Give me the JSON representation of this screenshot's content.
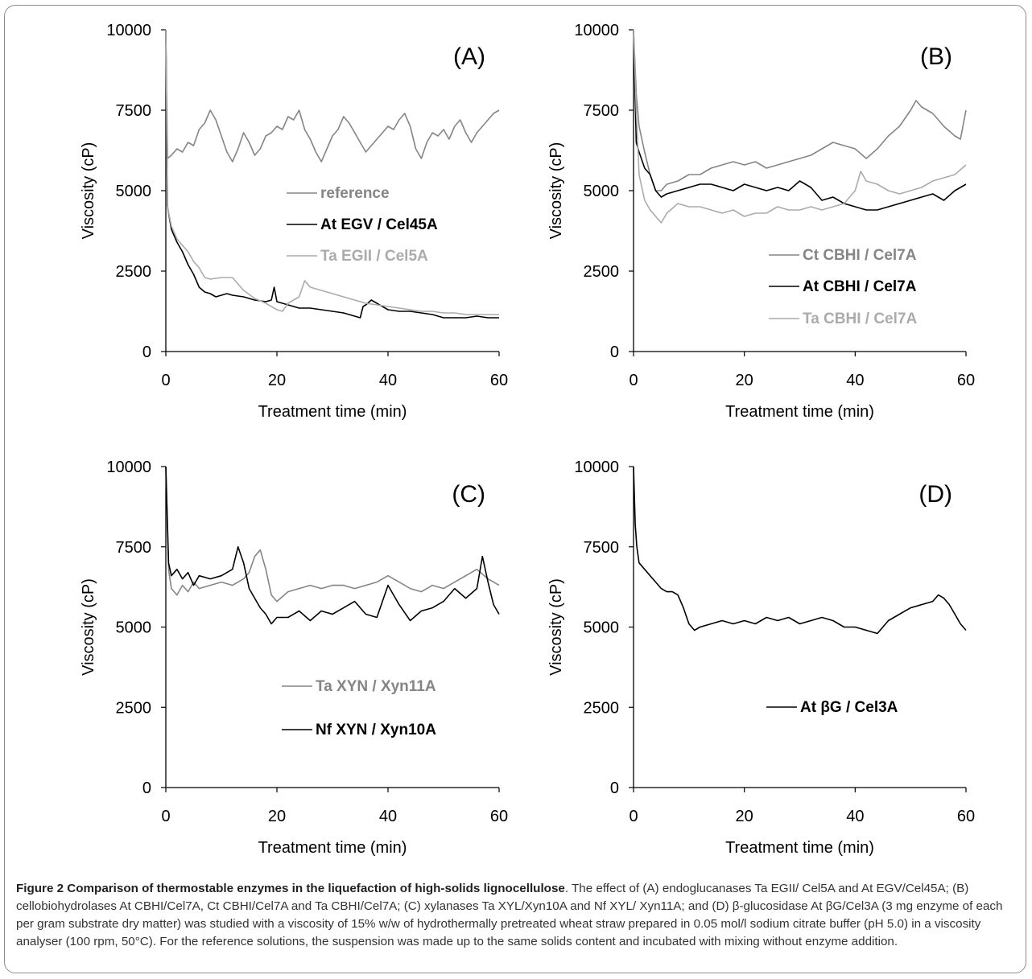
{
  "caption": {
    "title": "Figure 2 Comparison of thermostable enzymes in the liquefaction of high-solids lignocellulose",
    "body": ". The effect of (A) endoglucanases Ta EGII/ Cel5A and At EGV/Cel45A; (B) cellobiohydrolases At CBHI/Cel7A, Ct CBHI/Cel7A and Ta CBHI/Cel7A; (C) xylanases Ta XYL/Xyn10A and Nf XYL/ Xyn11A; and (D) β-glucosidase At βG/Cel3A (3 mg enzyme of each per gram substrate dry matter) was studied with a viscosity of 15% w/w of hydrothermally pretreated wheat straw prepared in 0.05 mol/l sodium citrate buffer (pH 5.0) in a viscosity analyser (100 rpm, 50°C). For the reference solutions, the suspension was made up to the same solids content and incubated with mixing without enzyme addition."
  },
  "colors": {
    "dark_gray": "#858585",
    "black": "#000000",
    "light_gray": "#ababab"
  },
  "chart_data": [
    {
      "type": "line",
      "panel_label": "(A)",
      "xlabel": "Treatment time (min)",
      "ylabel": "Viscosity (cP)",
      "xlim": [
        0,
        60
      ],
      "ylim": [
        0,
        10000
      ],
      "x_ticks": [
        "0",
        "20",
        "40",
        "60"
      ],
      "y_ticks": [
        "0",
        "2500",
        "5000",
        "7500",
        "10000"
      ],
      "legend": "center",
      "series": [
        {
          "name": "reference",
          "color": "#858585",
          "x": [
            0,
            0.3,
            1,
            2,
            3,
            4,
            5,
            6,
            7,
            8,
            9,
            10,
            11,
            12,
            13,
            14,
            15,
            16,
            17,
            18,
            19,
            20,
            21,
            22,
            23,
            24,
            25,
            26,
            27,
            28,
            29,
            30,
            31,
            32,
            33,
            34,
            35,
            36,
            37,
            38,
            39,
            40,
            41,
            42,
            43,
            44,
            45,
            46,
            47,
            48,
            49,
            50,
            51,
            52,
            53,
            54,
            55,
            56,
            57,
            58,
            59,
            60
          ],
          "y": [
            10000,
            6000,
            6100,
            6300,
            6200,
            6500,
            6400,
            6900,
            7100,
            7500,
            7200,
            6700,
            6200,
            5900,
            6300,
            6800,
            6500,
            6100,
            6300,
            6700,
            6800,
            7000,
            6900,
            7300,
            7200,
            7500,
            6900,
            6600,
            6200,
            5900,
            6300,
            6700,
            6900,
            7300,
            7100,
            6800,
            6500,
            6200,
            6400,
            6600,
            6800,
            7000,
            6900,
            7200,
            7400,
            7000,
            6300,
            6000,
            6500,
            6800,
            6700,
            6900,
            6600,
            7000,
            7200,
            6800,
            6500,
            6800,
            7000,
            7200,
            7400,
            7500
          ]
        },
        {
          "name": "At EGV / Cel45A",
          "color": "#000000",
          "x": [
            0,
            0.3,
            1,
            2,
            3,
            4,
            5,
            6,
            7,
            8,
            9,
            10,
            11,
            12,
            14,
            16,
            18,
            19,
            19.5,
            20,
            22,
            24,
            26,
            28,
            30,
            32,
            34,
            35,
            35.5,
            36,
            37,
            38,
            40,
            42,
            44,
            46,
            48,
            50,
            52,
            54,
            56,
            58,
            60
          ],
          "y": [
            10000,
            4500,
            3800,
            3400,
            3100,
            2700,
            2400,
            2000,
            1850,
            1800,
            1700,
            1750,
            1800,
            1750,
            1700,
            1600,
            1550,
            1600,
            2000,
            1550,
            1450,
            1350,
            1350,
            1300,
            1250,
            1200,
            1100,
            1050,
            1400,
            1450,
            1600,
            1500,
            1300,
            1250,
            1250,
            1200,
            1150,
            1050,
            1050,
            1050,
            1100,
            1050,
            1050
          ]
        },
        {
          "name": "Ta EGII / Cel5A",
          "color": "#ababab",
          "x": [
            0,
            0.3,
            1,
            2,
            3,
            4,
            5,
            6,
            7,
            8,
            10,
            12,
            14,
            16,
            18,
            20,
            21,
            22,
            24,
            25,
            26,
            28,
            30,
            32,
            34,
            36,
            38,
            40,
            42,
            44,
            46,
            48,
            50,
            52,
            54,
            56,
            58,
            60
          ],
          "y": [
            10000,
            4500,
            3900,
            3500,
            3300,
            3100,
            2800,
            2600,
            2300,
            2250,
            2300,
            2300,
            1900,
            1650,
            1500,
            1300,
            1250,
            1500,
            1700,
            2200,
            2000,
            1900,
            1800,
            1700,
            1600,
            1500,
            1450,
            1400,
            1350,
            1300,
            1250,
            1250,
            1200,
            1200,
            1150,
            1150,
            1150,
            1150
          ]
        }
      ]
    },
    {
      "type": "line",
      "panel_label": "(B)",
      "xlabel": "Treatment time (min)",
      "ylabel": "Viscosity (cP)",
      "xlim": [
        0,
        60
      ],
      "ylim": [
        0,
        10000
      ],
      "x_ticks": [
        "0",
        "20",
        "40",
        "60"
      ],
      "y_ticks": [
        "0",
        "2500",
        "5000",
        "7500",
        "10000"
      ],
      "legend": "bottom-right",
      "series": [
        {
          "name": "Ct CBHI / Cel7A",
          "color": "#858585",
          "x": [
            0,
            0.5,
            1,
            2,
            3,
            4,
            5,
            6,
            8,
            10,
            12,
            14,
            16,
            18,
            20,
            22,
            24,
            26,
            28,
            30,
            32,
            34,
            36,
            38,
            40,
            42,
            44,
            46,
            48,
            50,
            51,
            52,
            54,
            56,
            58,
            59,
            60
          ],
          "y": [
            10000,
            8000,
            7000,
            6200,
            5500,
            5000,
            5000,
            5200,
            5300,
            5500,
            5500,
            5700,
            5800,
            5900,
            5800,
            5900,
            5700,
            5800,
            5900,
            6000,
            6100,
            6300,
            6500,
            6400,
            6300,
            6000,
            6300,
            6700,
            7000,
            7500,
            7800,
            7600,
            7400,
            7000,
            6700,
            6600,
            7500
          ]
        },
        {
          "name": "At CBHI / Cel7A",
          "color": "#000000",
          "x": [
            0,
            0.5,
            1,
            2,
            3,
            4,
            5,
            6,
            8,
            10,
            12,
            14,
            16,
            18,
            20,
            22,
            24,
            26,
            28,
            30,
            32,
            34,
            36,
            38,
            40,
            42,
            44,
            46,
            48,
            50,
            52,
            54,
            56,
            58,
            60
          ],
          "y": [
            10000,
            6500,
            6200,
            5700,
            5500,
            5000,
            4800,
            4900,
            5000,
            5100,
            5200,
            5200,
            5100,
            5000,
            5200,
            5100,
            5000,
            5100,
            5000,
            5300,
            5100,
            4700,
            4800,
            4600,
            4500,
            4400,
            4400,
            4500,
            4600,
            4700,
            4800,
            4900,
            4700,
            5000,
            5200
          ]
        },
        {
          "name": "Ta CBHI / Cel7A",
          "color": "#ababab",
          "x": [
            0,
            0.5,
            1,
            2,
            3,
            4,
            5,
            6,
            8,
            10,
            12,
            14,
            16,
            18,
            20,
            22,
            24,
            26,
            28,
            30,
            32,
            34,
            36,
            38,
            40,
            41,
            42,
            44,
            46,
            48,
            50,
            52,
            54,
            56,
            58,
            60
          ],
          "y": [
            10000,
            7500,
            5500,
            4700,
            4400,
            4200,
            4000,
            4300,
            4600,
            4500,
            4500,
            4400,
            4300,
            4400,
            4200,
            4300,
            4300,
            4500,
            4400,
            4400,
            4500,
            4400,
            4500,
            4600,
            5000,
            5600,
            5300,
            5200,
            5000,
            4900,
            5000,
            5100,
            5300,
            5400,
            5500,
            5800
          ]
        }
      ]
    },
    {
      "type": "line",
      "panel_label": "(C)",
      "xlabel": "Treatment time (min)",
      "ylabel": "Viscosity (cP)",
      "xlim": [
        0,
        60
      ],
      "ylim": [
        0,
        10000
      ],
      "x_ticks": [
        "0",
        "20",
        "40",
        "60"
      ],
      "y_ticks": [
        "0",
        "2500",
        "5000",
        "7500",
        "10000"
      ],
      "legend": "bottom-center",
      "series": [
        {
          "name": "Ta XYN / Xyn11A",
          "color": "#858585",
          "x": [
            0,
            0.5,
            1,
            2,
            3,
            4,
            5,
            6,
            8,
            10,
            12,
            14,
            15,
            16,
            17,
            18,
            19,
            20,
            22,
            24,
            26,
            28,
            30,
            32,
            34,
            36,
            38,
            40,
            42,
            44,
            46,
            48,
            50,
            52,
            54,
            56,
            58,
            60
          ],
          "y": [
            10000,
            6800,
            6200,
            6000,
            6300,
            6100,
            6400,
            6200,
            6300,
            6400,
            6300,
            6500,
            6700,
            7200,
            7400,
            6800,
            6000,
            5800,
            6100,
            6200,
            6300,
            6200,
            6300,
            6300,
            6200,
            6300,
            6400,
            6600,
            6400,
            6200,
            6100,
            6300,
            6200,
            6400,
            6600,
            6800,
            6500,
            6300
          ]
        },
        {
          "name": "Nf XYN / Xyn10A",
          "color": "#000000",
          "x": [
            0,
            0.5,
            1,
            2,
            3,
            4,
            5,
            6,
            8,
            10,
            12,
            13,
            14,
            15,
            16,
            17,
            18,
            19,
            20,
            22,
            24,
            26,
            28,
            30,
            32,
            34,
            36,
            38,
            40,
            42,
            44,
            46,
            48,
            50,
            52,
            54,
            56,
            57,
            58,
            59,
            60
          ],
          "y": [
            10000,
            7000,
            6600,
            6800,
            6500,
            6700,
            6300,
            6600,
            6500,
            6600,
            6800,
            7500,
            7000,
            6200,
            5900,
            5600,
            5400,
            5100,
            5300,
            5300,
            5500,
            5200,
            5500,
            5400,
            5600,
            5800,
            5400,
            5300,
            6300,
            5700,
            5200,
            5500,
            5600,
            5800,
            6200,
            5900,
            6200,
            7200,
            6400,
            5700,
            5400
          ]
        }
      ]
    },
    {
      "type": "line",
      "panel_label": "(D)",
      "xlabel": "Treatment time (min)",
      "ylabel": "Viscosity (cP)",
      "xlim": [
        0,
        60
      ],
      "ylim": [
        0,
        10000
      ],
      "x_ticks": [
        "0",
        "20",
        "40",
        "60"
      ],
      "y_ticks": [
        "0",
        "2500",
        "5000",
        "7500",
        "10000"
      ],
      "legend": "bottom-center",
      "series": [
        {
          "name": "At βG / Cel3A",
          "color": "#000000",
          "x": [
            0,
            0.3,
            0.6,
            1,
            2,
            3,
            4,
            5,
            6,
            7,
            8,
            9,
            10,
            11,
            12,
            14,
            16,
            18,
            20,
            22,
            24,
            26,
            28,
            30,
            32,
            34,
            36,
            38,
            40,
            42,
            44,
            46,
            48,
            50,
            52,
            54,
            55,
            56,
            57,
            58,
            59,
            60
          ],
          "y": [
            10000,
            8200,
            7500,
            7000,
            6800,
            6600,
            6400,
            6200,
            6100,
            6100,
            6000,
            5600,
            5100,
            4900,
            5000,
            5100,
            5200,
            5100,
            5200,
            5100,
            5300,
            5200,
            5300,
            5100,
            5200,
            5300,
            5200,
            5000,
            5000,
            4900,
            4800,
            5200,
            5400,
            5600,
            5700,
            5800,
            6000,
            5900,
            5700,
            5400,
            5100,
            4900
          ]
        }
      ]
    }
  ]
}
